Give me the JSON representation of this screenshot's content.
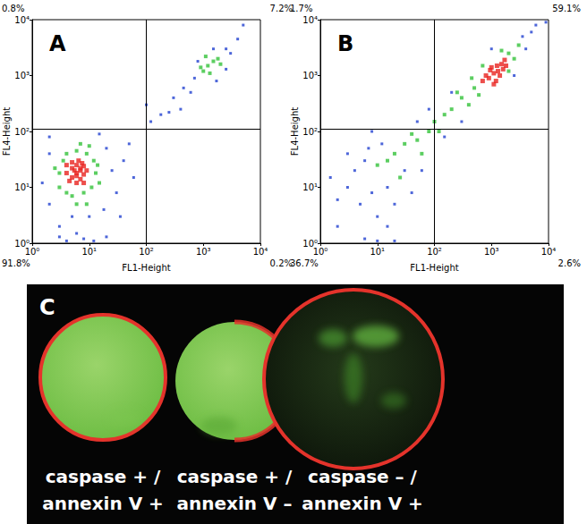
{
  "chart_data": [
    {
      "type": "scatter",
      "title": "A",
      "x_label": "FL1-Height",
      "y_label": "FL4-Height",
      "log": true,
      "grid": false,
      "xlim": [
        1,
        10000
      ],
      "ylim": [
        1,
        10000
      ],
      "xticks": [
        {
          "value": 1,
          "label": "10⁰"
        },
        {
          "value": 10,
          "label": "10¹"
        },
        {
          "value": 100,
          "label": "10²"
        },
        {
          "value": 1000,
          "label": "10³"
        },
        {
          "value": 10000,
          "label": "10⁴"
        }
      ],
      "yticks": [
        {
          "value": 1,
          "label": "10⁰"
        },
        {
          "value": 10,
          "label": "10¹"
        },
        {
          "value": 100,
          "label": "10²"
        },
        {
          "value": 1000,
          "label": "10³"
        },
        {
          "value": 10000,
          "label": "10⁴"
        }
      ],
      "thresholds": {
        "x": 100,
        "y": 110
      },
      "quadrant_labels": {
        "upper_left": "0.8%",
        "upper_right": "7.2%",
        "lower_left": "91.8%",
        "lower_right": "0.2%"
      },
      "series": [
        {
          "color": "#e8231f",
          "values": [
            [
              5,
              15
            ],
            [
              6,
              18
            ],
            [
              7,
              20
            ],
            [
              5,
              22
            ],
            [
              6,
              25
            ],
            [
              8,
              17
            ],
            [
              4,
              18
            ],
            [
              7,
              14
            ],
            [
              6,
              12
            ],
            [
              5,
              28
            ],
            [
              8,
              24
            ],
            [
              9,
              20
            ],
            [
              4.5,
              13
            ],
            [
              6.5,
              30
            ],
            [
              7.5,
              27
            ],
            [
              5.5,
              20
            ],
            [
              6,
              16
            ],
            [
              7,
              22
            ],
            [
              4,
              25
            ],
            [
              8,
              12
            ]
          ]
        },
        {
          "color": "#33c23a",
          "values": [
            [
              3,
              10
            ],
            [
              3.5,
              30
            ],
            [
              4,
              40
            ],
            [
              6,
              45
            ],
            [
              9,
              40
            ],
            [
              12,
              30
            ],
            [
              13,
              18
            ],
            [
              11,
              10
            ],
            [
              8,
              8
            ],
            [
              5,
              7
            ],
            [
              3,
              18
            ],
            [
              10,
              55
            ],
            [
              7,
              60
            ],
            [
              4,
              8
            ],
            [
              14,
              25
            ],
            [
              15,
              12
            ],
            [
              2.5,
              22
            ],
            [
              6,
              5
            ],
            [
              9,
              5
            ],
            [
              1200,
              1500
            ],
            [
              1500,
              1800
            ],
            [
              1000,
              1200
            ],
            [
              1800,
              2000
            ],
            [
              1300,
              1100
            ],
            [
              900,
              1400
            ],
            [
              2000,
              1600
            ],
            [
              1100,
              2200
            ]
          ]
        },
        {
          "color": "#2040d0",
          "values": [
            [
              2,
              5
            ],
            [
              2,
              40
            ],
            [
              20,
              50
            ],
            [
              25,
              20
            ],
            [
              30,
              8
            ],
            [
              18,
              4
            ],
            [
              10,
              3
            ],
            [
              5,
              3
            ],
            [
              3,
              2
            ],
            [
              1.5,
              12
            ],
            [
              2,
              80
            ],
            [
              15,
              90
            ],
            [
              40,
              30
            ],
            [
              6,
              1.5
            ],
            [
              8,
              1.2
            ],
            [
              12,
              1.1
            ],
            [
              4,
              1.1
            ],
            [
              3,
              1.3
            ],
            [
              20,
              1.3
            ],
            [
              35,
              3
            ],
            [
              50,
              60
            ],
            [
              60,
              15
            ],
            [
              120,
              150
            ],
            [
              180,
              200
            ],
            [
              250,
              220
            ],
            [
              300,
              400
            ],
            [
              450,
              600
            ],
            [
              600,
              500
            ],
            [
              700,
              900
            ],
            [
              2500,
              3000
            ],
            [
              3000,
              2500
            ],
            [
              4000,
              4500
            ],
            [
              5000,
              8000
            ],
            [
              800,
              1800
            ],
            [
              2500,
              1300
            ],
            [
              1500,
              3000
            ],
            [
              1700,
              800
            ],
            [
              100,
              300
            ],
            [
              400,
              250
            ]
          ]
        }
      ]
    },
    {
      "type": "scatter",
      "title": "B",
      "x_label": "FL1-Height",
      "y_label": "FL4-Height",
      "log": true,
      "grid": false,
      "xlim": [
        1,
        10000
      ],
      "ylim": [
        1,
        10000
      ],
      "xticks": [
        {
          "value": 1,
          "label": "10⁰"
        },
        {
          "value": 10,
          "label": "10¹"
        },
        {
          "value": 100,
          "label": "10²"
        },
        {
          "value": 1000,
          "label": "10³"
        },
        {
          "value": 10000,
          "label": "10⁴"
        }
      ],
      "yticks": [
        {
          "value": 1,
          "label": "10⁰"
        },
        {
          "value": 10,
          "label": "10¹"
        },
        {
          "value": 100,
          "label": "10²"
        },
        {
          "value": 1000,
          "label": "10³"
        },
        {
          "value": 10000,
          "label": "10⁴"
        }
      ],
      "thresholds": {
        "x": 100,
        "y": 110
      },
      "quadrant_labels": {
        "upper_left": "1.7%",
        "upper_right": "59.1%",
        "lower_left": "36.7%",
        "lower_right": "2.6%"
      },
      "series": [
        {
          "color": "#e8231f",
          "values": [
            [
              900,
              900
            ],
            [
              1100,
              1100
            ],
            [
              1300,
              1200
            ],
            [
              1000,
              1400
            ],
            [
              1500,
              1600
            ],
            [
              1200,
              800
            ],
            [
              800,
              1000
            ],
            [
              1400,
              1000
            ],
            [
              1700,
              1900
            ],
            [
              1100,
              700
            ],
            [
              950,
              1250
            ],
            [
              1250,
              1500
            ],
            [
              1600,
              1300
            ],
            [
              700,
              800
            ],
            [
              1800,
              1500
            ]
          ]
        },
        {
          "color": "#33c23a",
          "values": [
            [
              300,
              400
            ],
            [
              400,
              300
            ],
            [
              500,
              600
            ],
            [
              600,
              450
            ],
            [
              2000,
              2500
            ],
            [
              2500,
              2000
            ],
            [
              3000,
              3500
            ],
            [
              200,
              250
            ],
            [
              150,
              200
            ],
            [
              100,
              150
            ],
            [
              80,
              100
            ],
            [
              50,
              70
            ],
            [
              30,
              60
            ],
            [
              2000,
              1200
            ],
            [
              700,
              1500
            ],
            [
              1500,
              2800
            ],
            [
              450,
              900
            ],
            [
              250,
              500
            ],
            [
              120,
              100
            ],
            [
              60,
              40
            ],
            [
              40,
              90
            ],
            [
              20,
              40
            ],
            [
              15,
              30
            ],
            [
              10,
              25
            ],
            [
              25,
              15
            ]
          ]
        },
        {
          "color": "#2040d0",
          "values": [
            [
              3,
              10
            ],
            [
              5,
              5
            ],
            [
              4,
              20
            ],
            [
              8,
              8
            ],
            [
              10,
              3
            ],
            [
              6,
              30
            ],
            [
              15,
              10
            ],
            [
              20,
              5
            ],
            [
              2,
              6
            ],
            [
              7,
              50
            ],
            [
              30,
              20
            ],
            [
              40,
              8
            ],
            [
              12,
              60
            ],
            [
              3,
              40
            ],
            [
              60,
              20
            ],
            [
              50,
              150
            ],
            [
              80,
              250
            ],
            [
              150,
              80
            ],
            [
              5000,
              6000
            ],
            [
              6000,
              8000
            ],
            [
              4000,
              3000
            ],
            [
              3500,
              5000
            ],
            [
              9000,
              9000
            ],
            [
              2,
              2
            ],
            [
              15,
              2
            ],
            [
              6,
              1.2
            ],
            [
              20,
              1.1
            ],
            [
              10,
              1.1
            ],
            [
              1.5,
              15
            ],
            [
              8,
              100
            ],
            [
              300,
              150
            ],
            [
              200,
              500
            ],
            [
              1000,
              3000
            ],
            [
              2500,
              1000
            ]
          ]
        }
      ]
    }
  ],
  "panel_c": {
    "label": "C",
    "cells": [
      {
        "lines": [
          "caspase + /",
          "annexin V +"
        ]
      },
      {
        "lines": [
          "caspase + /",
          "annexin V –"
        ]
      },
      {
        "lines": [
          "caspase – /",
          "annexin V +"
        ]
      }
    ]
  }
}
